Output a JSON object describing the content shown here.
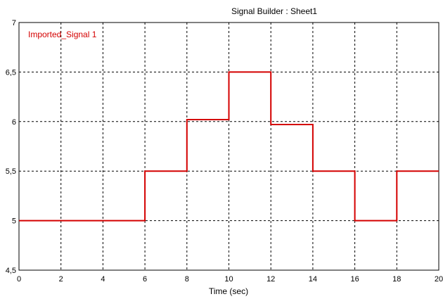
{
  "chart_data": {
    "type": "line",
    "title": "Signal Builder : Sheet1",
    "xlabel": "Time (sec)",
    "ylabel": "",
    "xlim": [
      0,
      20
    ],
    "ylim": [
      4.5,
      7
    ],
    "xticks": [
      0,
      2,
      4,
      6,
      8,
      10,
      12,
      14,
      16,
      18,
      20
    ],
    "yticks": [
      4.5,
      5,
      5.5,
      6,
      6.5,
      7
    ],
    "xtick_labels": [
      "0",
      "2",
      "4",
      "6",
      "8",
      "10",
      "12",
      "14",
      "16",
      "18",
      "20"
    ],
    "ytick_labels": [
      "4,5",
      "5",
      "5,5",
      "6",
      "6,5",
      "7"
    ],
    "grid": true,
    "legend_position": "top-left",
    "series": [
      {
        "name": "Imported_Signal 1",
        "color": "#d40000",
        "step": true,
        "x": [
          0,
          6,
          6,
          8,
          8,
          10,
          10,
          12,
          12,
          14,
          14,
          16,
          16,
          18,
          18,
          20
        ],
        "y": [
          5,
          5,
          5.5,
          5.5,
          6.02,
          6.02,
          6.5,
          6.5,
          5.97,
          5.97,
          5.5,
          5.5,
          5,
          5,
          5.5,
          5.5
        ]
      }
    ]
  }
}
